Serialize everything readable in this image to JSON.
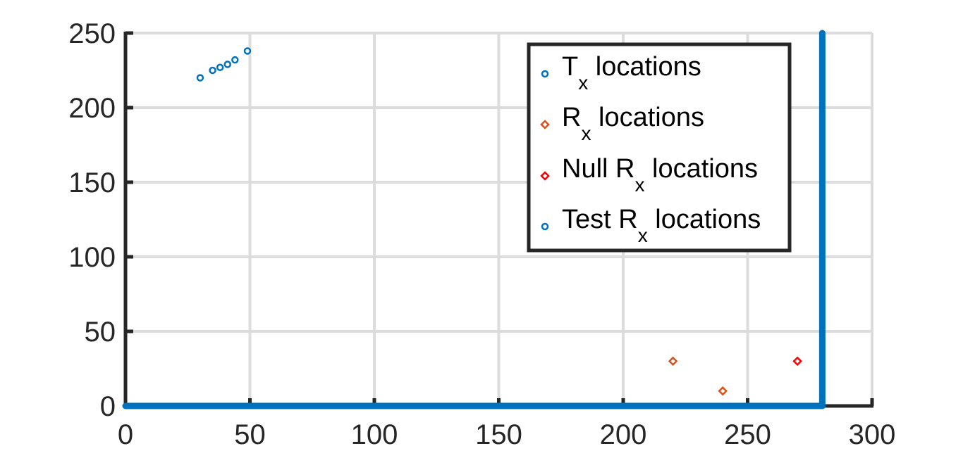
{
  "chart_data": {
    "type": "scatter",
    "title": "",
    "xlabel": "",
    "ylabel": "",
    "xlim": [
      0,
      300
    ],
    "ylim": [
      0,
      250
    ],
    "xticks": [
      "0",
      "50",
      "100",
      "150",
      "200",
      "250",
      "300"
    ],
    "yticks": [
      "0",
      "50",
      "100",
      "150",
      "200",
      "250"
    ],
    "grid": true,
    "legend_position": "top-right",
    "series": [
      {
        "name": "T_x locations",
        "label_main": "T",
        "label_sub": "x",
        "label_rest": " locations",
        "marker": "circle",
        "color": "#0072BD",
        "points": [
          [
            30,
            220
          ],
          [
            35,
            225
          ],
          [
            38,
            227
          ],
          [
            41,
            229
          ],
          [
            44,
            232
          ],
          [
            49,
            238
          ]
        ]
      },
      {
        "name": "R_x locations",
        "label_main": "R",
        "label_sub": "x",
        "label_rest": " locations",
        "marker": "diamond",
        "color": "#D95319",
        "points": [
          [
            220,
            30
          ],
          [
            240,
            10
          ]
        ]
      },
      {
        "name": "Null R_x locations",
        "label_main": "Null R",
        "label_sub": "x",
        "label_rest": " locations",
        "marker": "diamond",
        "color": "#FF0000",
        "points": [
          [
            270,
            30
          ]
        ]
      },
      {
        "name": "Test R_x locations",
        "label_main": "Test R",
        "label_sub": "x",
        "label_rest": " locations",
        "marker": "circle",
        "color": "#0072BD",
        "description": "dense points along y=0 for x in [0,280] and along x=280 for y in [0,250]",
        "segments": [
          {
            "from": [
              0,
              0
            ],
            "to": [
              280,
              0
            ]
          },
          {
            "from": [
              280,
              0
            ],
            "to": [
              280,
              250
            ]
          }
        ]
      }
    ]
  }
}
